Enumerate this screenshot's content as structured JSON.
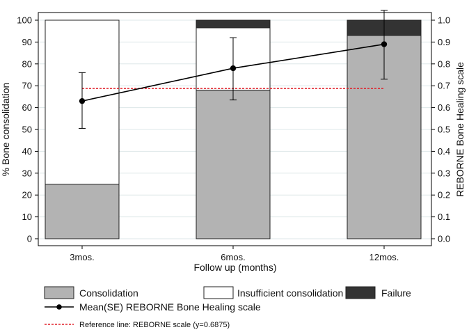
{
  "chart_data": {
    "type": "bar",
    "categories": [
      "3mos.",
      "6mos.",
      "12mos."
    ],
    "stacked": true,
    "series": [
      {
        "name": "Consolidation",
        "values": [
          25,
          68,
          93
        ],
        "color": "#b3b3b3"
      },
      {
        "name": "Insufficient consolidation",
        "values": [
          75,
          28.5,
          0
        ],
        "color": "#ffffff"
      },
      {
        "name": "Failure",
        "values": [
          0,
          3.5,
          7
        ],
        "color": "#333333"
      }
    ],
    "line_series": {
      "name": "Mean(SE) REBORNE Bone Healing scale",
      "axis": "right",
      "values": [
        0.63,
        0.78,
        0.89
      ],
      "error_low": [
        0.505,
        0.635,
        0.73
      ],
      "error_high": [
        0.76,
        0.92,
        1.045
      ],
      "color": "#000000"
    },
    "reference_line": {
      "label": "Reference line: REBORNE scale (y=0.6875)",
      "value": 0.6875,
      "color": "#e0202a"
    },
    "xlabel": "Follow up (months)",
    "ylabel": "% Bone consolidation",
    "ylabel_right": "REBORNE Bone Healing scale",
    "ylim": [
      0,
      100
    ],
    "ylim_right": [
      0,
      1.0
    ],
    "yticks": [
      "0",
      "10",
      "20",
      "30",
      "40",
      "50",
      "60",
      "70",
      "80",
      "90",
      "100"
    ],
    "yticks_right": [
      "0.0",
      "0.1",
      "0.2",
      "0.3",
      "0.4",
      "0.5",
      "0.6",
      "0.7",
      "0.8",
      "0.9",
      "1.0"
    ],
    "grid": true,
    "legend_position": "bottom"
  }
}
